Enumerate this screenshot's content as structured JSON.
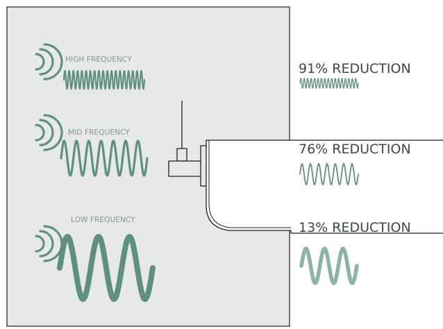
{
  "colors": {
    "panel": "#e6e8e9",
    "panel_border": "#2b2b2b",
    "wave": "#5e8f7f",
    "wave_light": "#8fb2a6",
    "label": "#8a9692",
    "reduction_text": "#3f4744",
    "device_line": "#1e1e1e"
  },
  "icons": {
    "signal": "signal-waves-icon",
    "device": "router-device-icon"
  },
  "panel": {
    "frequencies": [
      {
        "id": "high",
        "label": "HIGH FREQUENCY",
        "cycles": 19
      },
      {
        "id": "mid",
        "label": "MID FREQUENCY",
        "cycles": 7
      },
      {
        "id": "low",
        "label": "LOW FREQUENCY",
        "cycles": 3
      }
    ]
  },
  "reductions": [
    {
      "id": "high",
      "label": "91% REDUCTION",
      "value": 91
    },
    {
      "id": "mid",
      "label": "76% REDUCTION",
      "value": 76
    },
    {
      "id": "low",
      "label": "13% REDUCTION",
      "value": 13
    }
  ]
}
